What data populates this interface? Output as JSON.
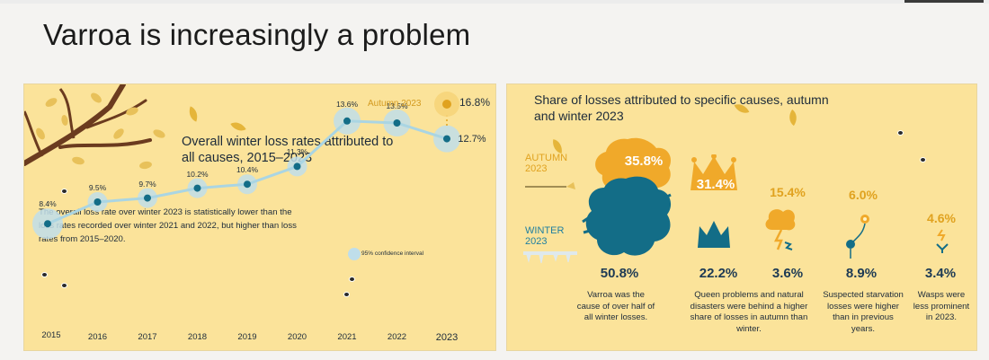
{
  "slide": {
    "title": "Varroa is increasingly a problem"
  },
  "left_panel": {
    "heading": "Overall winter loss rates attributed to all causes, 2015–2023",
    "description": "The overall loss rate over winter 2023 is statistically lower than the loss rates recorded over winter 2021 and 2022, but higher than loss rates from 2015–2020.",
    "autumn_label": "Autumn 2023",
    "autumn_value": "16.8%",
    "ci_label": "95% confidence interval"
  },
  "chart_data": {
    "type": "line",
    "title": "Overall winter loss rates attributed to all causes, 2015–2023",
    "xlabel": "",
    "ylabel": "",
    "categories": [
      "2015",
      "2016",
      "2017",
      "2018",
      "2019",
      "2020",
      "2021",
      "2022",
      "2023"
    ],
    "values": [
      8.4,
      9.5,
      9.7,
      10.2,
      10.4,
      11.3,
      13.6,
      13.5,
      12.7
    ],
    "value_labels": [
      "8.4%",
      "9.5%",
      "9.7%",
      "10.2%",
      "10.4%",
      "11.3%",
      "13.6%",
      "13.5%",
      "12.7%"
    ],
    "extra_point": {
      "label": "Autumn 2023",
      "value": 16.8,
      "value_label": "16.8%"
    },
    "legend": "95% confidence interval",
    "grid": false,
    "colors": {
      "line": "#aad5e3",
      "point": "#136d87",
      "ci": "#bfdeea",
      "autumn_point": "#e0a21f"
    }
  },
  "right_panel": {
    "heading": "Share of losses attributed to specific causes, autumn and winter 2023",
    "season_autumn": {
      "line1": "AUTUMN",
      "line2": "2023"
    },
    "season_winter": {
      "line1": "WINTER",
      "line2": "2023"
    },
    "causes": [
      {
        "name": "Varroa",
        "autumn": "35.8%",
        "winter": "50.8%",
        "description": "Varroa was the cause of over half of all winter losses."
      },
      {
        "name": "Queen problems",
        "autumn": "31.4%",
        "winter": "22.2%"
      },
      {
        "name": "Natural disasters",
        "autumn": "15.4%",
        "winter": "3.6%"
      },
      {
        "name": "Starvation",
        "autumn": "6.0%",
        "winter": "8.9%",
        "description": "Suspected starvation losses were higher than in previous years."
      },
      {
        "name": "Wasps",
        "autumn": "4.6%",
        "winter": "3.4%",
        "description": "Wasps were less prominent in 2023."
      }
    ],
    "queen_disaster_description": "Queen problems and natural disasters were behind a higher share of losses in autumn than winter."
  },
  "colors": {
    "panel_bg": "#fbe39a",
    "autumn": "#e0a21f",
    "winter": "#136d87",
    "text": "#1d2b3a"
  }
}
